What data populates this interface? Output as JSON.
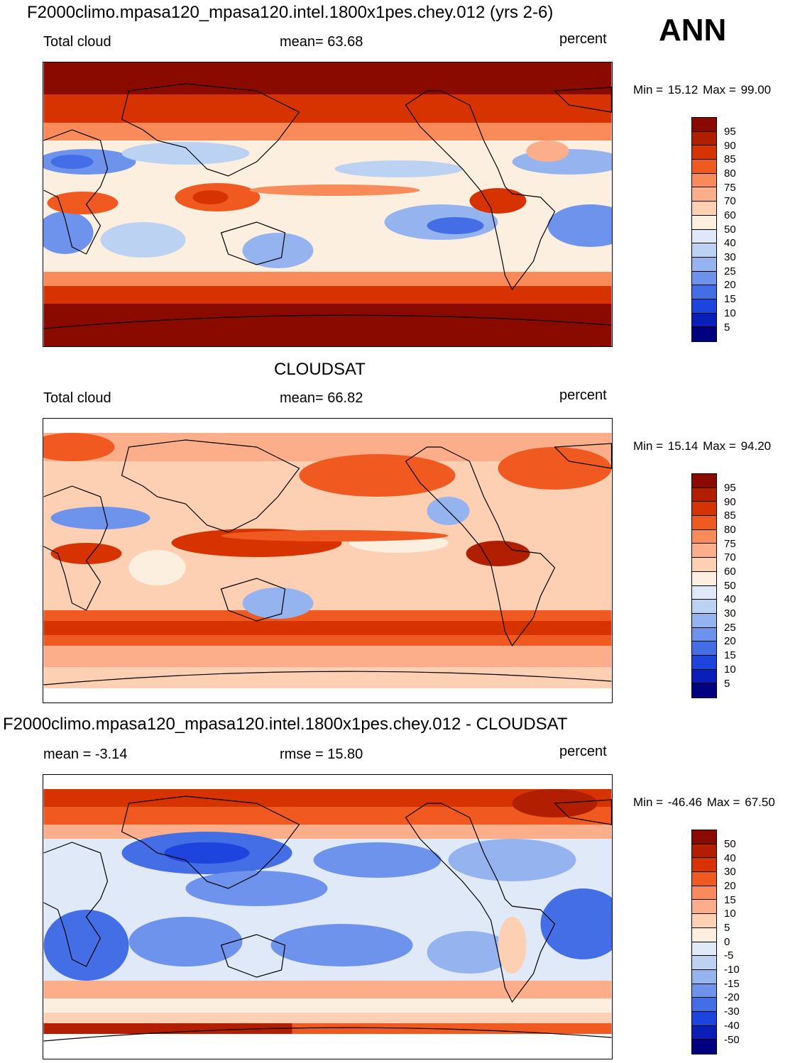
{
  "header": {
    "title": "F2000climo.mpasa120_mpasa120.intel.1800x1pes.chey.012 (yrs 2-6)",
    "season": "ANN"
  },
  "panels": [
    {
      "id": "model",
      "title": "",
      "left_label": "Total cloud",
      "center_label": "mean=  63.68",
      "right_label": "percent",
      "min_label": "Min =",
      "min_value": "15.12",
      "max_label": "Max =",
      "max_value": "99.00",
      "colorbar_labels": [
        "95",
        "90",
        "85",
        "80",
        "75",
        "70",
        "60",
        "50",
        "40",
        "30",
        "25",
        "20",
        "15",
        "10",
        "5"
      ],
      "icon": "world-map-icon"
    },
    {
      "id": "obs",
      "title": "CLOUDSAT",
      "left_label": "Total cloud",
      "center_label": "mean=  66.82",
      "right_label": "percent",
      "min_label": "Min =",
      "min_value": "15.14",
      "max_label": "Max =",
      "max_value": "94.20",
      "colorbar_labels": [
        "95",
        "90",
        "85",
        "80",
        "75",
        "70",
        "60",
        "50",
        "40",
        "30",
        "25",
        "20",
        "15",
        "10",
        "5"
      ],
      "icon": "world-map-icon"
    },
    {
      "id": "diff",
      "title": "F2000climo.mpasa120_mpasa120.intel.1800x1pes.chey.012 - CLOUDSAT",
      "left_label": "mean =  -3.14",
      "center_label": "rmse =  15.80",
      "right_label": "percent",
      "min_label": "Min =",
      "min_value": "-46.46",
      "max_label": "Max =",
      "max_value": "67.50",
      "colorbar_labels": [
        "50",
        "40",
        "30",
        "20",
        "15",
        "10",
        "5",
        "0",
        "-5",
        "-10",
        "-15",
        "-20",
        "-30",
        "-40",
        "-50"
      ],
      "icon": "world-map-icon"
    }
  ],
  "palette": [
    "#8b0a00",
    "#b21f00",
    "#d63300",
    "#f05a20",
    "#f98a5a",
    "#fcae8a",
    "#fdd0b4",
    "#fdefe0",
    "#dfe9f7",
    "#bcd2f2",
    "#95b4ef",
    "#6e93ec",
    "#436ee6",
    "#1d45dd",
    "#0a1fb8",
    "#000080"
  ]
}
